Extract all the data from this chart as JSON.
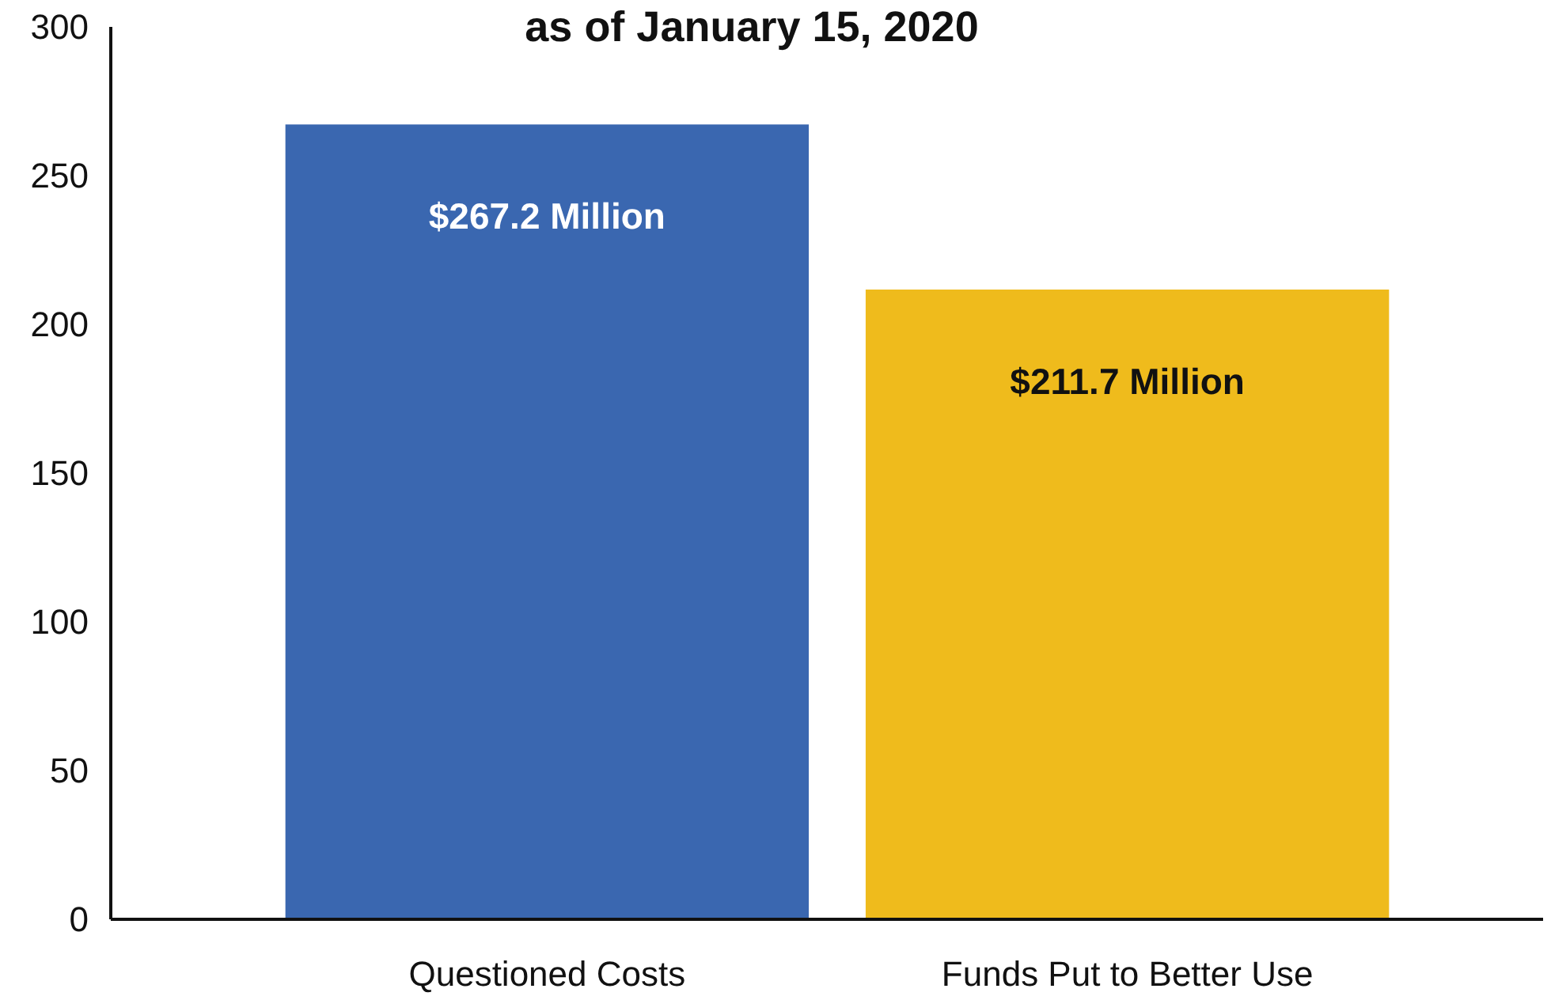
{
  "chart_data": {
    "type": "bar",
    "title": "as of January 15, 2020",
    "categories": [
      "Questioned Costs",
      "Funds Put to Better Use"
    ],
    "values": [
      267.2,
      211.7
    ],
    "colors": [
      "#3a67b0",
      "#efbb1c"
    ],
    "value_labels": [
      "$267.2 Million",
      "$211.7 Million"
    ],
    "ylim": [
      0,
      300
    ],
    "yticks": [
      0,
      50,
      100,
      150,
      200,
      250,
      300
    ]
  }
}
